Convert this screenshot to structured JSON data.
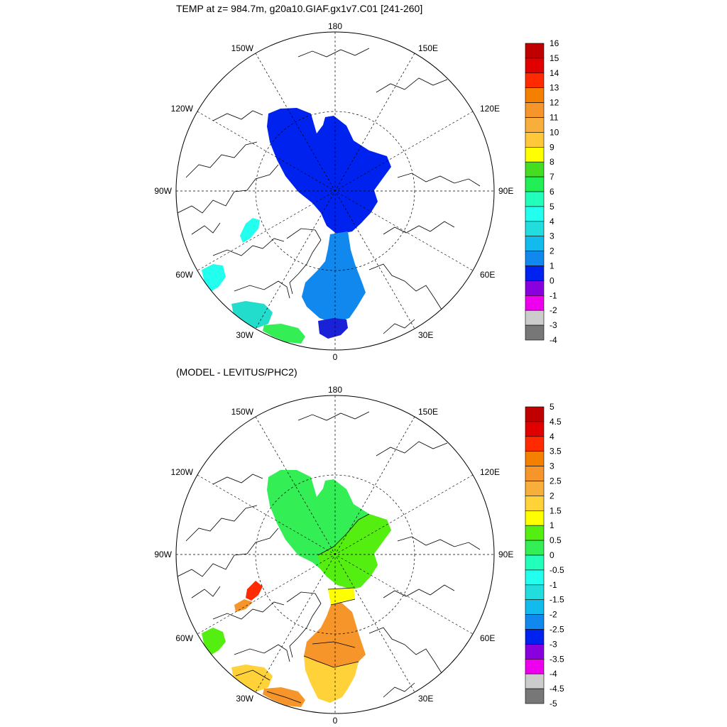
{
  "panels": [
    {
      "title": "TEMP at z= 984.7m, g20a10.GIAF.gx1v7.C01 [241-260]",
      "colorbar": {
        "labels": [
          "16",
          "15",
          "14",
          "13",
          "12",
          "11",
          "10",
          "9",
          "8",
          "7",
          "6",
          "5",
          "4",
          "3",
          "2",
          "1",
          "0",
          "-1",
          "-2",
          "-3",
          "-4"
        ],
        "colors": [
          "#c00000",
          "#e00000",
          "#ff2a00",
          "#f57f00",
          "#f5952a",
          "#f8ae3a",
          "#ffc83a",
          "#ffff00",
          "#44dd22",
          "#22ee55",
          "#22ffbb",
          "#22ffee",
          "#22dddd",
          "#11bbee",
          "#1188ee",
          "#0022ee",
          "#8800dd",
          "#ee00ee",
          "#cccccc",
          "#777777"
        ]
      }
    },
    {
      "title": "(MODEL - LEVITUS/PHC2)",
      "colorbar": {
        "labels": [
          "5",
          "4.5",
          "4",
          "3.5",
          "3",
          "2.5",
          "2",
          "1.5",
          "1",
          "0.5",
          "0",
          "-0.5",
          "-1",
          "-1.5",
          "-2",
          "-2.5",
          "-3",
          "-3.5",
          "-4",
          "-4.5",
          "-5"
        ],
        "colors": [
          "#c00000",
          "#e00000",
          "#ff2a00",
          "#f57f00",
          "#f5952a",
          "#f8ae3a",
          "#ffd23a",
          "#ffff00",
          "#55ee11",
          "#33ee55",
          "#22ffbb",
          "#22ffee",
          "#22dddd",
          "#11bbee",
          "#1188ee",
          "#0022ee",
          "#8800dd",
          "#ee00ee",
          "#cccccc",
          "#777777"
        ]
      }
    }
  ],
  "longitude_labels": {
    "top": "180",
    "bottom": "0",
    "left_upper": "150W",
    "right_upper": "150E",
    "left_mid_upper": "120W",
    "right_mid_upper": "120E",
    "left_center": "90W",
    "right_center": "90E",
    "left_mid_lower": "60W",
    "right_mid_lower": "60E",
    "left_lower": "30W",
    "right_lower": "30E"
  },
  "field_colors": {
    "top_main": "#0022ee",
    "top_strait": "#1188ee",
    "top_south": "#1a22d8",
    "top_west_patch": "#22ffee",
    "top_sw_patch": "#22ddcc",
    "bot_main": "#33ee55",
    "bot_sub": "#55ee11",
    "bot_yellow": "#ffff00",
    "bot_orange": "#f5952a",
    "bot_gold": "#ffd23a",
    "bot_red": "#ff2a00"
  }
}
